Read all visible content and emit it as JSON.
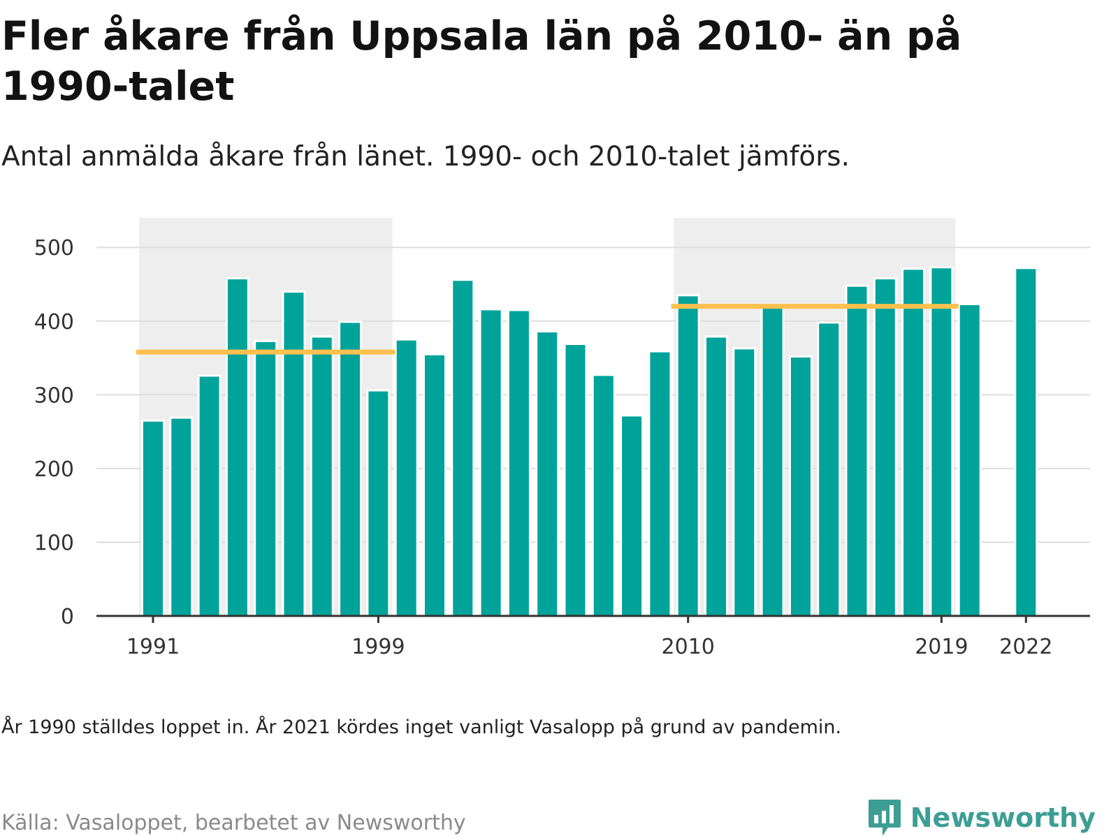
{
  "header": {
    "title": "Fler åkare från Uppsala län på 2010- än på 1990-talet",
    "subtitle": "Antal anmälda åkare från länet. 1990- och 2010-talet jämförs."
  },
  "footer": {
    "note": "År 1990 ställdes loppet in. År 2021 kördes inget vanligt Vasalopp på grund av pandemin.",
    "source": "Källa: Vasaloppet, bearbetet av Newsworthy",
    "logo_text": "Newsworthy"
  },
  "colors": {
    "bar": "#00a39a",
    "average_line": "#ffc04d",
    "highlight_band": "#eeeeee",
    "gridline": "#dddddd",
    "axis": "#333333",
    "logo": "#3d9e94"
  },
  "chart_data": {
    "type": "bar",
    "x_tick_labels": [
      "1991",
      "1999",
      "2010",
      "2019",
      "2022"
    ],
    "y_ticks": [
      0,
      100,
      200,
      300,
      400,
      500
    ],
    "ylim": [
      0,
      540
    ],
    "grid": true,
    "bars": [
      {
        "year": 1991,
        "value": 265
      },
      {
        "year": 1992,
        "value": 269
      },
      {
        "year": 1993,
        "value": 326
      },
      {
        "year": 1994,
        "value": 458
      },
      {
        "year": 1995,
        "value": 373
      },
      {
        "year": 1996,
        "value": 440
      },
      {
        "year": 1997,
        "value": 379
      },
      {
        "year": 1998,
        "value": 399
      },
      {
        "year": 1999,
        "value": 306
      },
      {
        "year": 2000,
        "value": 375
      },
      {
        "year": 2001,
        "value": 355
      },
      {
        "year": 2002,
        "value": 456
      },
      {
        "year": 2003,
        "value": 416
      },
      {
        "year": 2004,
        "value": 415
      },
      {
        "year": 2005,
        "value": 386
      },
      {
        "year": 2006,
        "value": 369
      },
      {
        "year": 2007,
        "value": 327
      },
      {
        "year": 2008,
        "value": 272
      },
      {
        "year": 2009,
        "value": 359
      },
      {
        "year": 2010,
        "value": 435
      },
      {
        "year": 2011,
        "value": 379
      },
      {
        "year": 2012,
        "value": 363
      },
      {
        "year": 2013,
        "value": 421
      },
      {
        "year": 2014,
        "value": 352
      },
      {
        "year": 2015,
        "value": 398
      },
      {
        "year": 2016,
        "value": 448
      },
      {
        "year": 2017,
        "value": 458
      },
      {
        "year": 2018,
        "value": 471
      },
      {
        "year": 2019,
        "value": 473
      },
      {
        "year": 2020,
        "value": 423
      },
      {
        "year": 2022,
        "value": 472
      }
    ],
    "highlight_periods": [
      {
        "from": 1991,
        "to": 1999,
        "average": 358
      },
      {
        "from": 2010,
        "to": 2019,
        "average": 420
      }
    ]
  }
}
